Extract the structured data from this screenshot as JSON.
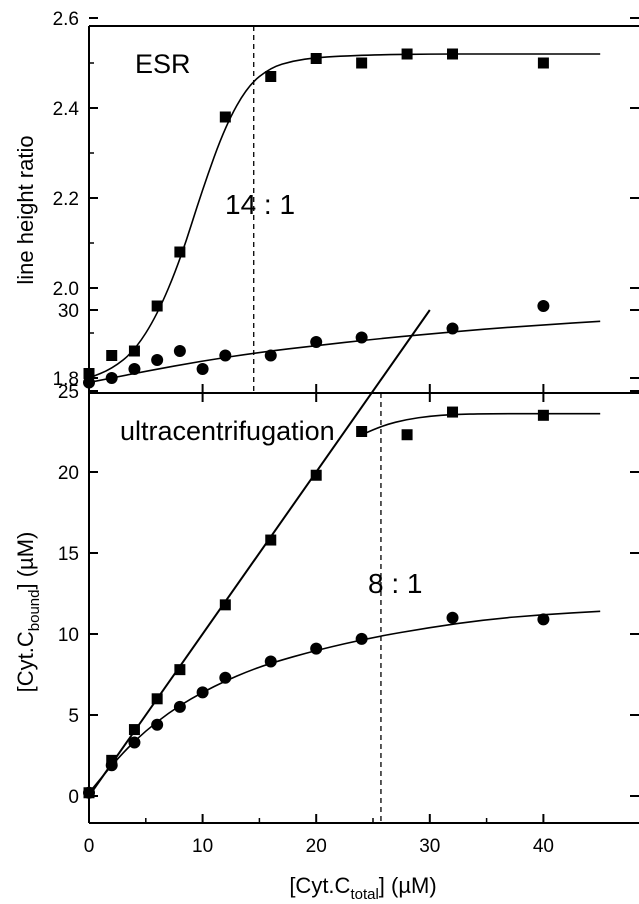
{
  "chart_data": [
    {
      "type": "scatter",
      "panel": "top",
      "title": "ESR",
      "ylabel": "line height ratio",
      "xlim": [
        0,
        45
      ],
      "ylim": [
        1.7,
        2.6
      ],
      "yticks": [
        1.8,
        2.0,
        2.2,
        2.4,
        2.6
      ],
      "ytick_labels": [
        "1.8",
        "2.0",
        "2.2",
        "2.4",
        "2.6"
      ],
      "annotation": "14 : 1",
      "vline_x": 14.5,
      "series": [
        {
          "marker": "square",
          "x": [
            0,
            2,
            4,
            6,
            8,
            12,
            16,
            20,
            24,
            28,
            32,
            40
          ],
          "y": [
            1.81,
            1.85,
            1.86,
            1.96,
            2.08,
            2.38,
            2.47,
            2.51,
            2.5,
            2.52,
            2.52,
            2.5
          ],
          "fit_curve": {
            "x": [
              0,
              2,
              4,
              6,
              8,
              10,
              12,
              14,
              16,
              18,
              20,
              22,
              25,
              30,
              35,
              40,
              45
            ],
            "y": [
              1.8,
              1.82,
              1.86,
              1.94,
              2.06,
              2.22,
              2.36,
              2.45,
              2.49,
              2.505,
              2.512,
              2.515,
              2.518,
              2.52,
              2.52,
              2.52,
              2.52
            ]
          }
        },
        {
          "marker": "circle",
          "x": [
            0,
            2,
            4,
            6,
            8,
            10,
            12,
            16,
            20,
            24,
            32,
            40
          ],
          "y": [
            1.79,
            1.8,
            1.82,
            1.84,
            1.86,
            1.82,
            1.85,
            1.85,
            1.88,
            1.89,
            1.91,
            1.96
          ],
          "fit_curve": {
            "x": [
              0,
              5,
              10,
              15,
              20,
              25,
              30,
              35,
              40,
              45
            ],
            "y": [
              1.79,
              1.815,
              1.838,
              1.857,
              1.872,
              1.886,
              1.898,
              1.909,
              1.918,
              1.926
            ]
          }
        }
      ]
    },
    {
      "type": "scatter",
      "panel": "bottom",
      "title": "ultracentrifugation",
      "ylabel": "[Cyt.C",
      "ylabel_sub": "bound",
      "ylabel_suffix": "] (µM)",
      "xlabel": "[Cyt.C",
      "xlabel_sub": "total",
      "xlabel_suffix": "]  (µM)",
      "xlim": [
        0,
        45
      ],
      "ylim": [
        -2.5,
        32
      ],
      "xticks": [
        0,
        10,
        20,
        30,
        40
      ],
      "xtick_labels": [
        "0",
        "10",
        "20",
        "30",
        "40"
      ],
      "yticks": [
        0,
        5,
        10,
        15,
        20,
        25,
        30
      ],
      "ytick_labels": [
        "0",
        "5",
        "10",
        "15",
        "20",
        "25",
        "30"
      ],
      "annotation": "8 : 1",
      "vline_x": 25.7,
      "line_through_origin": {
        "x": [
          0,
          30
        ],
        "y": [
          0,
          30
        ]
      },
      "series": [
        {
          "marker": "square",
          "x": [
            0,
            2,
            4,
            6,
            8,
            12,
            16,
            20,
            24,
            28,
            32,
            40
          ],
          "y": [
            0.2,
            2.2,
            4.1,
            6.0,
            7.8,
            11.8,
            15.8,
            19.8,
            22.5,
            22.3,
            23.7,
            23.5
          ],
          "fit_curve": {
            "x": [
              24,
              26,
              28,
              30,
              32,
              35,
              40,
              45
            ],
            "y": [
              22.3,
              22.9,
              23.25,
              23.45,
              23.55,
              23.6,
              23.6,
              23.6
            ]
          }
        },
        {
          "marker": "circle",
          "x": [
            0,
            2,
            4,
            6,
            8,
            10,
            12,
            16,
            20,
            24,
            32,
            40
          ],
          "y": [
            0.2,
            1.9,
            3.3,
            4.4,
            5.5,
            6.4,
            7.3,
            8.3,
            9.1,
            9.7,
            11.0,
            10.9
          ],
          "fit_curve": {
            "x": [
              0,
              2,
              4,
              6,
              8,
              10,
              12,
              14,
              16,
              20,
              25,
              30,
              35,
              40,
              45
            ],
            "y": [
              0.2,
              1.9,
              3.4,
              4.6,
              5.6,
              6.4,
              7.1,
              7.7,
              8.2,
              9.0,
              9.8,
              10.4,
              10.9,
              11.2,
              11.4
            ]
          }
        }
      ]
    }
  ]
}
